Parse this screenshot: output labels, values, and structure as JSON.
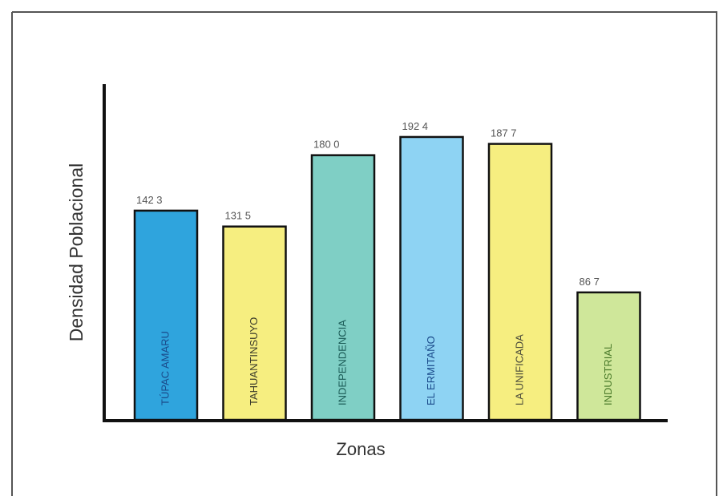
{
  "chart_data": {
    "type": "bar",
    "title": "",
    "xlabel": "Zonas",
    "ylabel": "Densidad Poblacional",
    "ylim": [
      0,
      200
    ],
    "grid": false,
    "categories": [
      "TÚPAC AMARU",
      "TAHUANTINSUYO",
      "INDEPENDENCIA",
      "EL ERMITAÑO",
      "LA UNIFICADA",
      "INDUSTRIAL"
    ],
    "values": [
      142.3,
      131.5,
      180.0,
      192.4,
      187.7,
      86.7
    ],
    "value_labels": [
      "142 3",
      "131 5",
      "180 0",
      "192 4",
      "187 7",
      "86 7"
    ],
    "colors": [
      "#2fa4dd",
      "#f6ee80",
      "#7fcfc5",
      "#8ed3f3",
      "#f6ee80",
      "#cfe79a"
    ],
    "label_colors": [
      "#1a4a8a",
      "#3a3a2a",
      "#1a5a55",
      "#1a4a8a",
      "#4a4a3a",
      "#4a7a2a"
    ]
  }
}
